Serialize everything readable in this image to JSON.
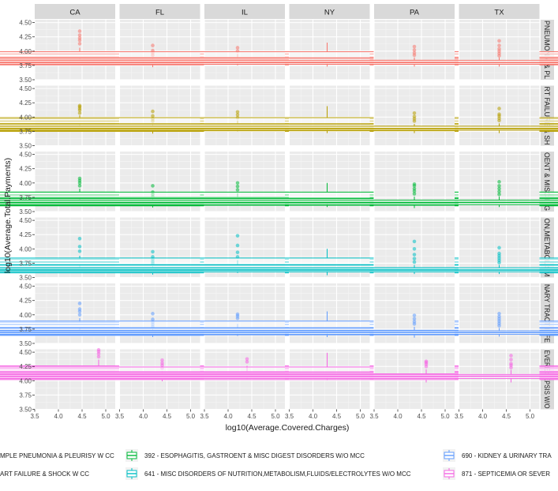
{
  "chart_data": {
    "type": "boxplot",
    "xlabel": "log10(Average.Covered.Charges)",
    "ylabel": "log10(Average.Total.Payments)",
    "xlim": [
      3.5,
      5.2
    ],
    "ylim": [
      3.5,
      4.55
    ],
    "x_ticks": [
      "3.5",
      "4.0",
      "4.5",
      "5.0"
    ],
    "y_ticks": [
      "3.50",
      "3.75",
      "4.00",
      "4.25",
      "4.50"
    ],
    "column_facets": [
      "CA",
      "FL",
      "IL",
      "NY",
      "PA",
      "TX"
    ],
    "row_facets": [
      "PNEUMONIA & PL",
      "RT FAILURE & SH",
      "OENT & MISC DIG",
      "ON,METABOLISM",
      "NARY TRACT INFE",
      "EVERE SEPSIS W/O"
    ],
    "legend": [
      {
        "label": "MPLE PNEUMONIA & PLEURISY W CC",
        "color": "#F8766D"
      },
      {
        "label": "ART FAILURE & SHOCK W CC",
        "color": "#B79F00"
      },
      {
        "label": "392 - ESOPHAGITIS, GASTROENT & MISC DIGEST DISORDERS W/O MCC",
        "color": "#00BA38"
      },
      {
        "label": "641 - MISC DISORDERS OF NUTRITION,METABOLISM,FLUIDS/ELECTROLYTES W/O MCC",
        "color": "#00BFC4"
      },
      {
        "label": "690 - KIDNEY & URINARY TRA",
        "color": "#619CFF"
      },
      {
        "label": "871 - SEPTICEMIA OR SEVER",
        "color": "#F564E3"
      }
    ],
    "series": [
      {
        "row": 0,
        "boxes": [
          {
            "x": 4.45,
            "q1": 3.9,
            "med": 3.95,
            "q3": 3.99,
            "wlo": 3.83,
            "whi": 4.06,
            "out": [
              4.13,
              4.19,
              4.23,
              4.28,
              4.35
            ]
          },
          {
            "x": 4.2,
            "q1": 3.76,
            "med": 3.79,
            "q3": 3.83,
            "wlo": 3.72,
            "whi": 3.88,
            "out": [
              3.93,
              3.97,
              4.01,
              4.1
            ]
          },
          {
            "x": 4.2,
            "q1": 3.81,
            "med": 3.85,
            "q3": 3.89,
            "wlo": 3.75,
            "whi": 3.95,
            "out": [
              4.0,
              4.06
            ]
          },
          {
            "x": 4.3,
            "q1": 3.82,
            "med": 3.88,
            "q3": 3.99,
            "wlo": 3.73,
            "whi": 4.15,
            "out": []
          },
          {
            "x": 4.35,
            "q1": 3.77,
            "med": 3.81,
            "q3": 3.84,
            "wlo": 3.73,
            "whi": 3.89,
            "out": [
              3.93,
              3.97,
              4.02,
              4.08
            ]
          },
          {
            "x": 4.35,
            "q1": 3.77,
            "med": 3.8,
            "q3": 3.84,
            "wlo": 3.73,
            "whi": 3.89,
            "out": [
              3.92,
              3.96,
              4.0,
              4.04,
              4.1,
              4.18
            ]
          }
        ]
      },
      {
        "row": 1,
        "boxes": [
          {
            "x": 4.45,
            "q1": 3.89,
            "med": 3.93,
            "q3": 3.97,
            "wlo": 3.83,
            "whi": 4.03,
            "out": [
              4.07,
              4.12,
              4.15,
              4.18,
              4.2
            ]
          },
          {
            "x": 4.2,
            "q1": 3.75,
            "med": 3.79,
            "q3": 3.83,
            "wlo": 3.71,
            "whi": 3.88,
            "out": [
              3.93,
              3.97,
              4.02,
              4.1
            ]
          },
          {
            "x": 4.2,
            "q1": 3.8,
            "med": 3.84,
            "q3": 3.88,
            "wlo": 3.75,
            "whi": 3.94,
            "out": [
              3.99,
              4.04,
              4.09
            ]
          },
          {
            "x": 4.3,
            "q1": 3.82,
            "med": 3.88,
            "q3": 3.99,
            "wlo": 3.72,
            "whi": 4.19,
            "out": []
          },
          {
            "x": 4.35,
            "q1": 3.76,
            "med": 3.8,
            "q3": 3.84,
            "wlo": 3.72,
            "whi": 3.88,
            "out": [
              3.93,
              3.97,
              4.01,
              4.07
            ]
          },
          {
            "x": 4.35,
            "q1": 3.77,
            "med": 3.8,
            "q3": 3.84,
            "wlo": 3.72,
            "whi": 3.89,
            "out": [
              3.94,
              3.98,
              4.02,
              4.05,
              4.15
            ]
          }
        ]
      },
      {
        "row": 2,
        "boxes": [
          {
            "x": 4.45,
            "q1": 3.75,
            "med": 3.79,
            "q3": 3.84,
            "wlo": 3.67,
            "whi": 3.9,
            "out": [
              3.95,
              4.0,
              4.04,
              4.08
            ]
          },
          {
            "x": 4.2,
            "q1": 3.6,
            "med": 3.63,
            "q3": 3.67,
            "wlo": 3.57,
            "whi": 3.72,
            "out": [
              3.76,
              3.8,
              3.84,
              3.95
            ]
          },
          {
            "x": 4.2,
            "q1": 3.65,
            "med": 3.69,
            "q3": 3.75,
            "wlo": 3.61,
            "whi": 3.82,
            "out": [
              3.88,
              3.94,
              4.0
            ]
          },
          {
            "x": 4.3,
            "q1": 3.67,
            "med": 3.73,
            "q3": 3.84,
            "wlo": 3.58,
            "whi": 4.0,
            "out": []
          },
          {
            "x": 4.35,
            "q1": 3.61,
            "med": 3.65,
            "q3": 3.7,
            "wlo": 3.56,
            "whi": 3.76,
            "out": [
              3.81,
              3.86,
              3.9,
              3.95,
              3.98
            ]
          },
          {
            "x": 4.35,
            "q1": 3.62,
            "med": 3.66,
            "q3": 3.7,
            "wlo": 3.58,
            "whi": 3.76,
            "out": [
              3.8,
              3.85,
              3.9,
              3.95,
              4.02
            ]
          }
        ]
      },
      {
        "row": 3,
        "boxes": [
          {
            "x": 4.45,
            "q1": 3.72,
            "med": 3.77,
            "q3": 3.82,
            "wlo": 3.65,
            "whi": 3.88,
            "out": [
              3.96,
              4.04,
              4.18
            ]
          },
          {
            "x": 4.2,
            "q1": 3.58,
            "med": 3.61,
            "q3": 3.65,
            "wlo": 3.55,
            "whi": 3.7,
            "out": [
              3.75,
              3.78,
              3.82,
              3.86,
              3.95
            ]
          },
          {
            "x": 4.2,
            "q1": 3.63,
            "med": 3.67,
            "q3": 3.72,
            "wlo": 3.58,
            "whi": 3.8,
            "out": [
              3.86,
              3.94,
              4.06,
              4.23
            ]
          },
          {
            "x": 4.3,
            "q1": 3.66,
            "med": 3.72,
            "q3": 3.84,
            "wlo": 3.54,
            "whi": 4.0,
            "out": []
          },
          {
            "x": 4.35,
            "q1": 3.6,
            "med": 3.64,
            "q3": 3.67,
            "wlo": 3.56,
            "whi": 3.72,
            "out": [
              3.77,
              3.83,
              3.9,
              4.0,
              4.13
            ]
          },
          {
            "x": 4.35,
            "q1": 3.6,
            "med": 3.63,
            "q3": 3.67,
            "wlo": 3.56,
            "whi": 3.72,
            "out": [
              3.76,
              3.8,
              3.84,
              3.88,
              3.92,
              4.02
            ]
          }
        ]
      },
      {
        "row": 4,
        "boxes": [
          {
            "x": 4.45,
            "q1": 3.78,
            "med": 3.83,
            "q3": 3.87,
            "wlo": 3.71,
            "whi": 3.94,
            "out": [
              4.0,
              4.06,
              4.1,
              4.2
            ]
          },
          {
            "x": 4.2,
            "q1": 3.64,
            "med": 3.67,
            "q3": 3.7,
            "wlo": 3.61,
            "whi": 3.75,
            "out": [
              3.79,
              3.83,
              3.87,
              3.92,
              4.02
            ]
          },
          {
            "x": 4.2,
            "q1": 3.68,
            "med": 3.72,
            "q3": 3.77,
            "wlo": 3.63,
            "whi": 3.84,
            "out": [
              3.94,
              3.98,
              4.01
            ]
          },
          {
            "x": 4.3,
            "q1": 3.71,
            "med": 3.77,
            "q3": 3.89,
            "wlo": 3.61,
            "whi": 4.06,
            "out": []
          },
          {
            "x": 4.35,
            "q1": 3.65,
            "med": 3.69,
            "q3": 3.73,
            "wlo": 3.6,
            "whi": 3.79,
            "out": [
              3.84,
              3.88,
              3.93,
              3.99
            ]
          },
          {
            "x": 4.35,
            "q1": 3.66,
            "med": 3.69,
            "q3": 3.72,
            "wlo": 3.62,
            "whi": 3.77,
            "out": [
              3.81,
              3.85,
              3.89,
              3.93,
              3.97,
              4.02
            ]
          }
        ]
      },
      {
        "row": 5,
        "boxes": [
          {
            "x": 4.85,
            "q1": 4.17,
            "med": 4.21,
            "q3": 4.26,
            "wlo": 4.02,
            "whi": 4.37,
            "out": [
              4.42,
              4.47,
              4.51,
              4.54
            ]
          },
          {
            "x": 4.4,
            "q1": 4.03,
            "med": 4.06,
            "q3": 4.1,
            "wlo": 3.99,
            "whi": 4.17,
            "out": [
              4.22,
              4.27,
              4.31,
              4.36
            ]
          },
          {
            "x": 4.4,
            "q1": 4.08,
            "med": 4.12,
            "q3": 4.16,
            "wlo": 4.03,
            "whi": 4.26,
            "out": [
              4.33,
              4.38
            ]
          },
          {
            "x": 4.3,
            "q1": 4.09,
            "med": 4.15,
            "q3": 4.24,
            "wlo": 4.01,
            "whi": 4.49,
            "out": []
          },
          {
            "x": 4.6,
            "q1": 4.02,
            "med": 4.06,
            "q3": 4.12,
            "wlo": 3.97,
            "whi": 4.2,
            "out": [
              4.25,
              4.29,
              4.32,
              4.34
            ]
          },
          {
            "x": 4.6,
            "q1": 4.04,
            "med": 4.08,
            "q3": 4.11,
            "wlo": 3.97,
            "whi": 4.19,
            "out": [
              4.23,
              4.27,
              4.3,
              4.37,
              4.44
            ]
          }
        ]
      }
    ]
  }
}
